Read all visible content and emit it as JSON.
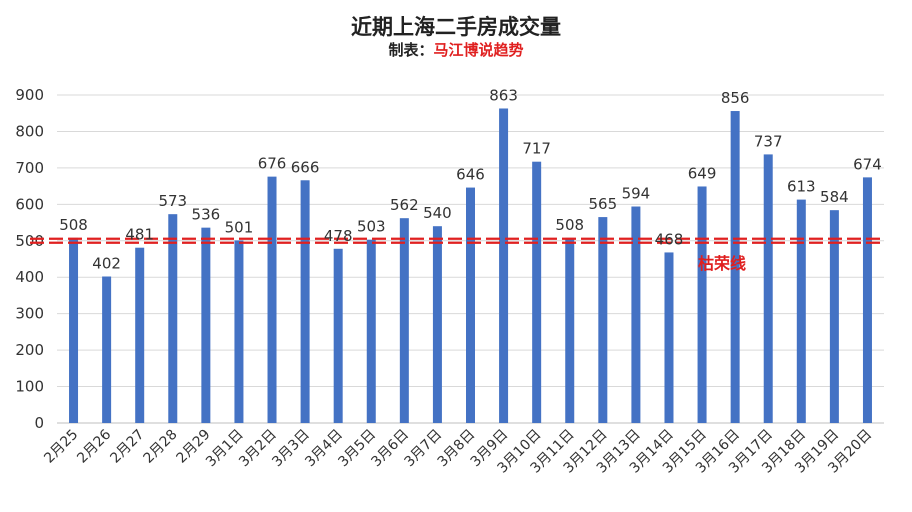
{
  "chart_data": {
    "type": "bar",
    "title": "近期上海二手房成交量",
    "subtitle_label": "制表：",
    "subtitle_source": "马江博说趋势",
    "categories": [
      "2月25",
      "2月26",
      "2月27",
      "2月28",
      "2月29",
      "3月1日",
      "3月2日",
      "3月3日",
      "3月4日",
      "3月5日",
      "3月6日",
      "3月7日",
      "3月8日",
      "3月9日",
      "3月10日",
      "3月11日",
      "3月12日",
      "3月13日",
      "3月14日",
      "3月15日",
      "3月16日",
      "3月17日",
      "3月18日",
      "3月19日",
      "3月20日"
    ],
    "values": [
      508,
      402,
      481,
      573,
      536,
      501,
      676,
      666,
      478,
      503,
      562,
      540,
      646,
      863,
      717,
      508,
      565,
      594,
      468,
      649,
      856,
      737,
      613,
      584,
      674
    ],
    "ylim": [
      0,
      900
    ],
    "yticks": [
      0,
      100,
      200,
      300,
      400,
      500,
      600,
      700,
      800,
      900
    ],
    "grid": true,
    "legend": "none",
    "bar_color": "#4472c4",
    "reference_line": {
      "value": 500,
      "label": "枯荣线",
      "color": "#e02020",
      "style": "double-dashed"
    }
  }
}
